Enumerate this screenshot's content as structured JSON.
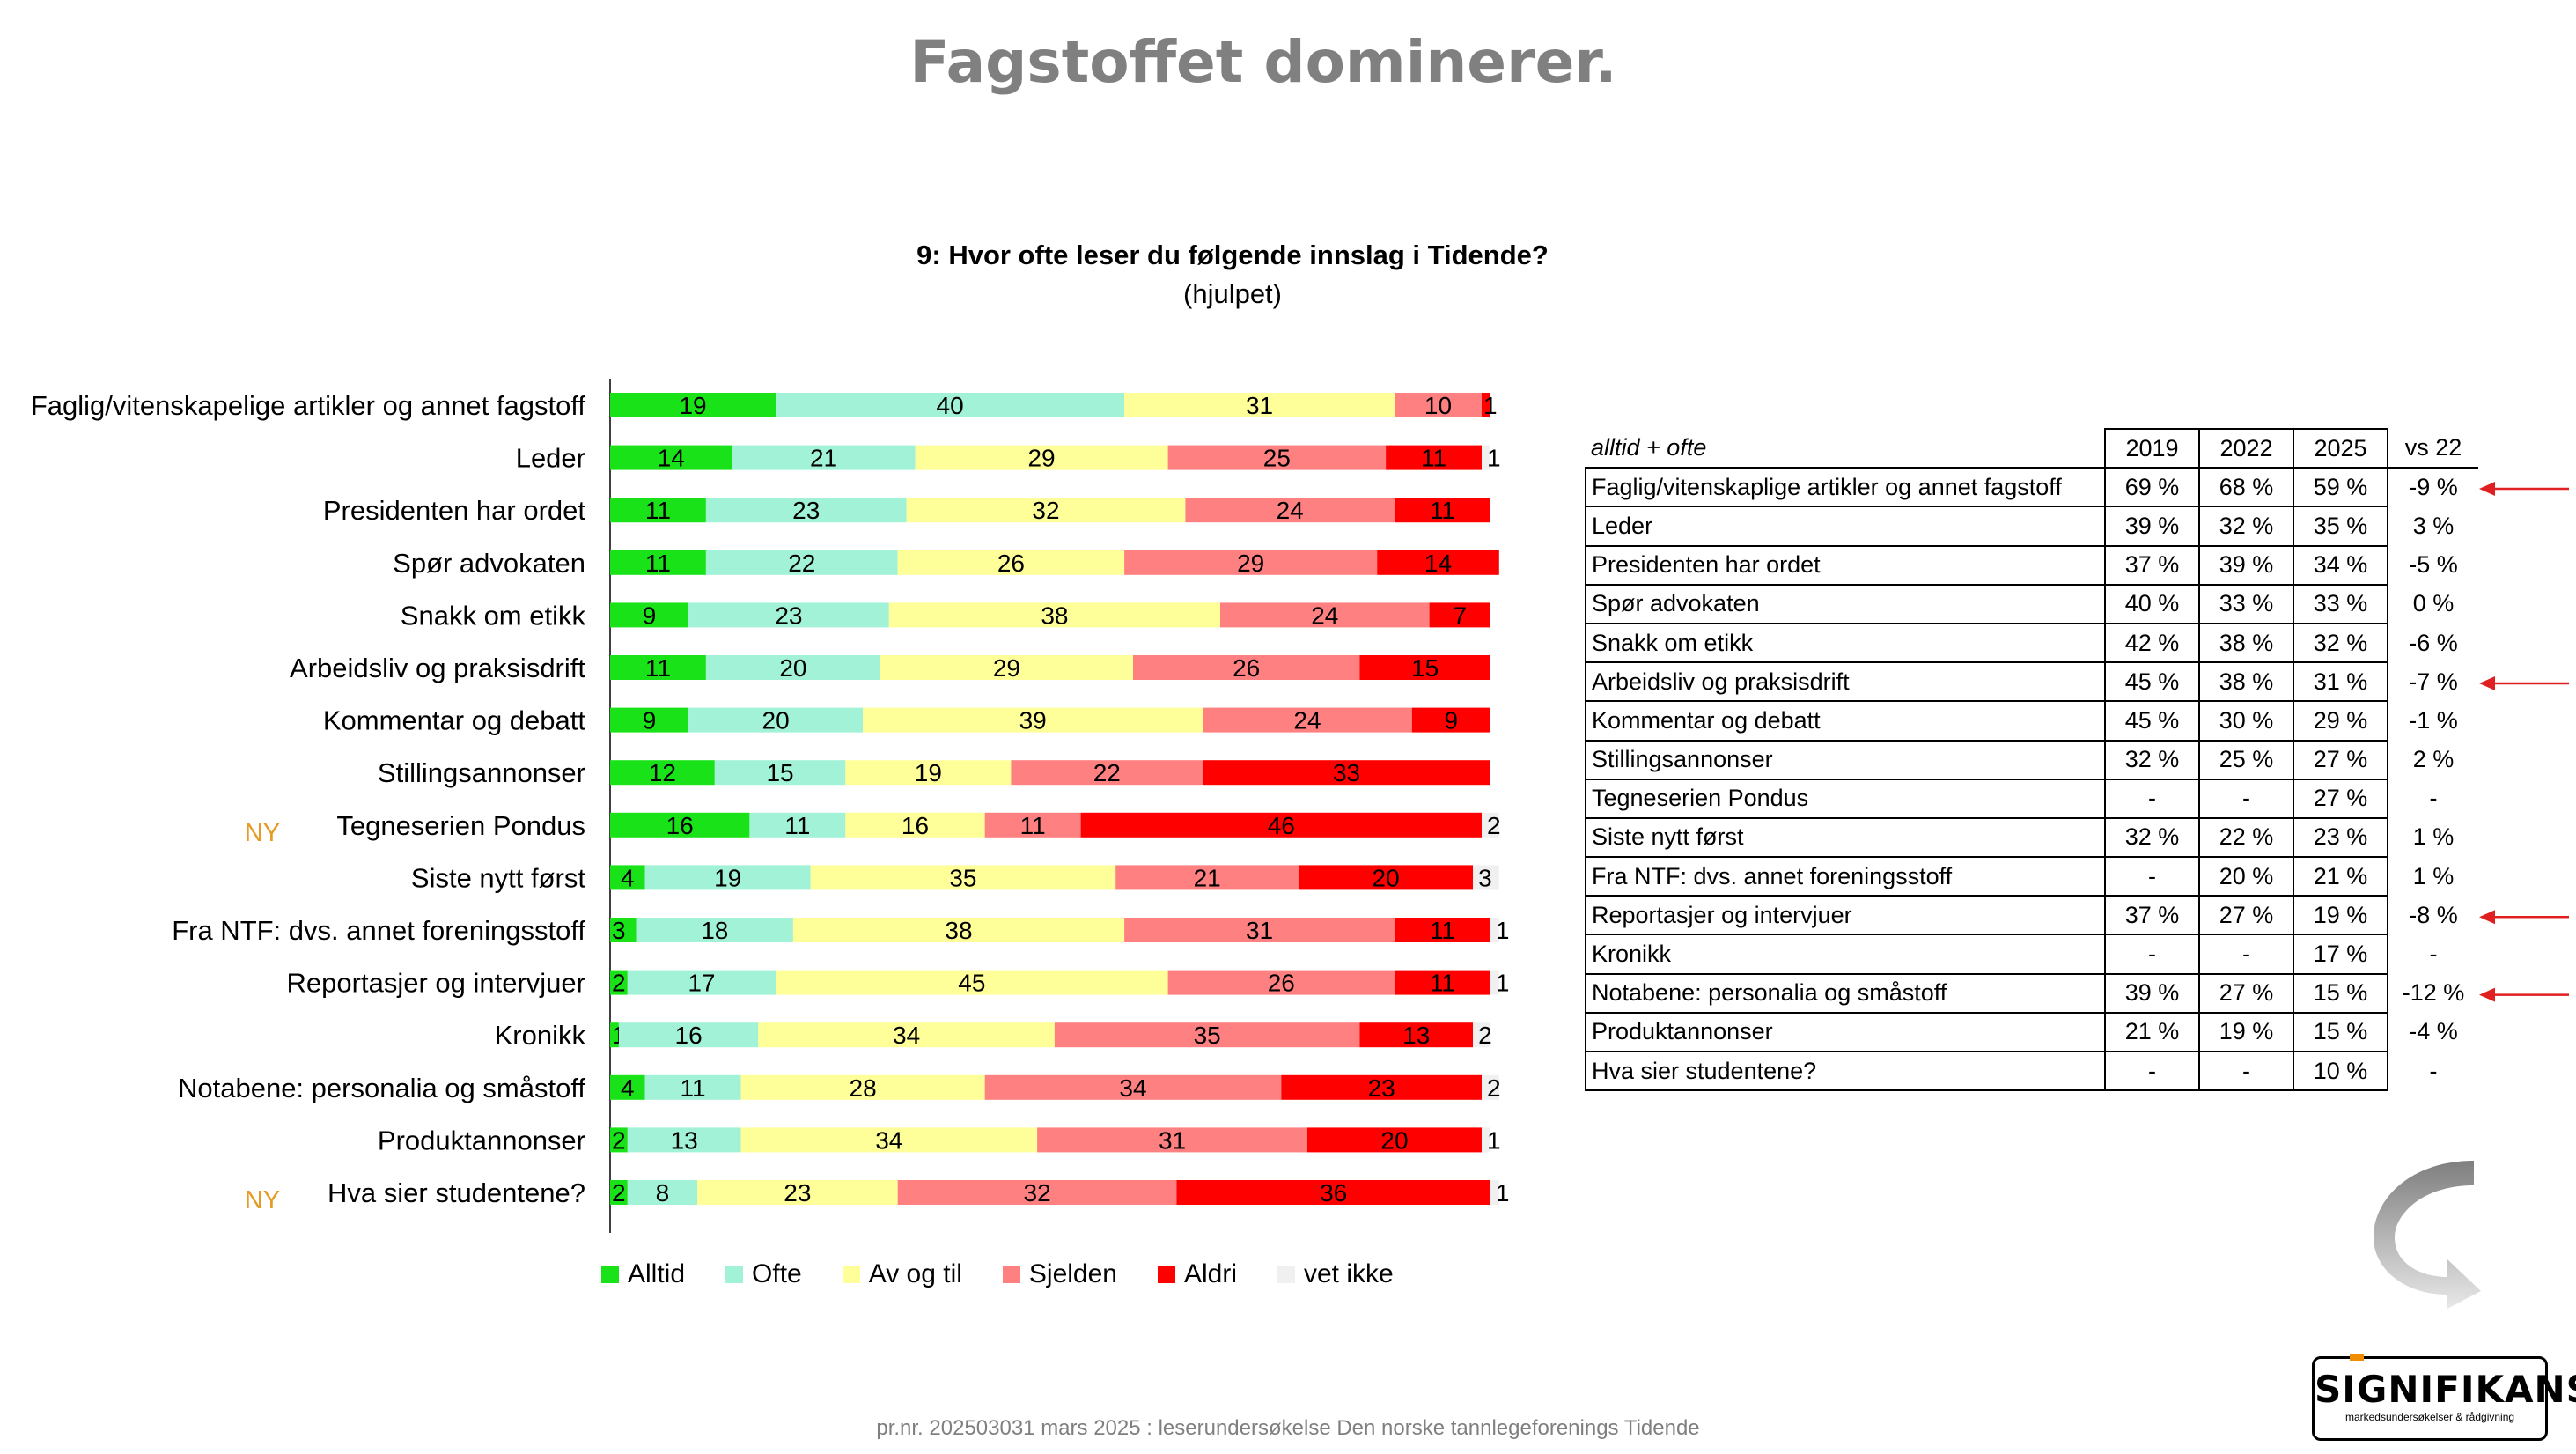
{
  "page_title": "Fagstoffet dominerer.",
  "question_title": "9: Hvor ofte leser du følgende innslag i Tidende?",
  "question_subtitle": "(hjulpet)",
  "footer": "pr.nr. 202503031 mars 2025 : leserundersøkelse Den norske tannlegeforenings Tidende",
  "logo": {
    "name": "SIGNIFIKANS",
    "tagline": "markedsundersøkelser & rådgivning"
  },
  "colors": {
    "Alltid": "#19e219",
    "Ofte": "#a1f2d6",
    "Av og til": "#ffff99",
    "Sjelden": "#ff8080",
    "Aldri": "#ff0000",
    "vet ikke": "#f0f0f0",
    "ny_marker": "#e69a22"
  },
  "chart_data": {
    "type": "bar",
    "orientation": "horizontal",
    "stacked": true,
    "unit": "%",
    "categories": [
      "Faglig/vitenskapelige artikler og annet fagstoff",
      "Leder",
      "Presidenten har ordet",
      "Spør advokaten",
      "Snakk om etikk",
      "Arbeidsliv og praksisdrift",
      "Kommentar og debatt",
      "Stillingsannonser",
      "Tegneserien Pondus",
      "Siste nytt først",
      "Fra NTF: dvs. annet foreningsstoff",
      "Reportasjer og intervjuer",
      "Kronikk",
      "Notabene: personalia og småstoff",
      "Produktannonser",
      "Hva sier studentene?"
    ],
    "new_marker": "NY",
    "new_categories": [
      8,
      15
    ],
    "series": [
      {
        "name": "Alltid",
        "values": [
          19,
          14,
          11,
          11,
          9,
          11,
          9,
          12,
          16,
          4,
          3,
          2,
          1,
          4,
          2,
          2
        ]
      },
      {
        "name": "Ofte",
        "values": [
          40,
          21,
          23,
          22,
          23,
          20,
          20,
          15,
          11,
          19,
          18,
          17,
          16,
          11,
          13,
          8
        ]
      },
      {
        "name": "Av og til",
        "values": [
          31,
          29,
          32,
          26,
          38,
          29,
          39,
          19,
          16,
          35,
          38,
          45,
          34,
          28,
          34,
          23
        ]
      },
      {
        "name": "Sjelden",
        "values": [
          10,
          25,
          24,
          29,
          24,
          26,
          24,
          22,
          11,
          21,
          31,
          26,
          35,
          34,
          31,
          32
        ]
      },
      {
        "name": "Aldri",
        "values": [
          1,
          11,
          11,
          14,
          7,
          15,
          9,
          33,
          46,
          20,
          11,
          11,
          13,
          23,
          20,
          36
        ]
      },
      {
        "name": "vet ikke",
        "values": [
          0,
          1,
          0,
          0,
          0,
          0,
          0,
          0,
          2,
          3,
          1,
          1,
          2,
          2,
          1,
          1
        ]
      }
    ],
    "xlim": [
      0,
      100
    ],
    "legend_position": "bottom",
    "grid": false
  },
  "table": {
    "header_label": "alltid + ofte",
    "columns": [
      "2019",
      "2022",
      "2025",
      "vs 22"
    ],
    "rows": [
      {
        "label": "Faglig/vitenskaplige artikler og annet fagstoff",
        "v2019": "69 %",
        "v2022": "68 %",
        "v2025": "59 %",
        "vs22": "-9 %",
        "flag": true
      },
      {
        "label": "Leder",
        "v2019": "39 %",
        "v2022": "32 %",
        "v2025": "35 %",
        "vs22": "3 %",
        "flag": false
      },
      {
        "label": "Presidenten har ordet",
        "v2019": "37 %",
        "v2022": "39 %",
        "v2025": "34 %",
        "vs22": "-5 %",
        "flag": false
      },
      {
        "label": "Spør advokaten",
        "v2019": "40 %",
        "v2022": "33 %",
        "v2025": "33 %",
        "vs22": "0 %",
        "flag": false
      },
      {
        "label": "Snakk om etikk",
        "v2019": "42 %",
        "v2022": "38 %",
        "v2025": "32 %",
        "vs22": "-6 %",
        "flag": false
      },
      {
        "label": "Arbeidsliv og praksisdrift",
        "v2019": "45 %",
        "v2022": "38 %",
        "v2025": "31 %",
        "vs22": "-7 %",
        "flag": true
      },
      {
        "label": "Kommentar og debatt",
        "v2019": "45 %",
        "v2022": "30 %",
        "v2025": "29 %",
        "vs22": "-1 %",
        "flag": false
      },
      {
        "label": "Stillingsannonser",
        "v2019": "32 %",
        "v2022": "25 %",
        "v2025": "27 %",
        "vs22": "2 %",
        "flag": false
      },
      {
        "label": "Tegneserien Pondus",
        "v2019": "-",
        "v2022": "-",
        "v2025": "27 %",
        "vs22": "-",
        "flag": false
      },
      {
        "label": "Siste nytt først",
        "v2019": "32 %",
        "v2022": "22 %",
        "v2025": "23 %",
        "vs22": "1 %",
        "flag": false
      },
      {
        "label": "Fra NTF: dvs. annet foreningsstoff",
        "v2019": "-",
        "v2022": "20 %",
        "v2025": "21 %",
        "vs22": "1 %",
        "flag": false
      },
      {
        "label": "Reportasjer og intervjuer",
        "v2019": "37 %",
        "v2022": "27 %",
        "v2025": "19 %",
        "vs22": "-8 %",
        "flag": true
      },
      {
        "label": "Kronikk",
        "v2019": "-",
        "v2022": "-",
        "v2025": "17 %",
        "vs22": "-",
        "flag": false
      },
      {
        "label": "Notabene: personalia og småstoff",
        "v2019": "39 %",
        "v2022": "27 %",
        "v2025": "15 %",
        "vs22": "-12 %",
        "flag": true
      },
      {
        "label": "Produktannonser",
        "v2019": "21 %",
        "v2022": "19 %",
        "v2025": "15 %",
        "vs22": "-4 %",
        "flag": false
      },
      {
        "label": "Hva sier studentene?",
        "v2019": "-",
        "v2022": "-",
        "v2025": "10 %",
        "vs22": "-",
        "flag": false
      }
    ]
  }
}
